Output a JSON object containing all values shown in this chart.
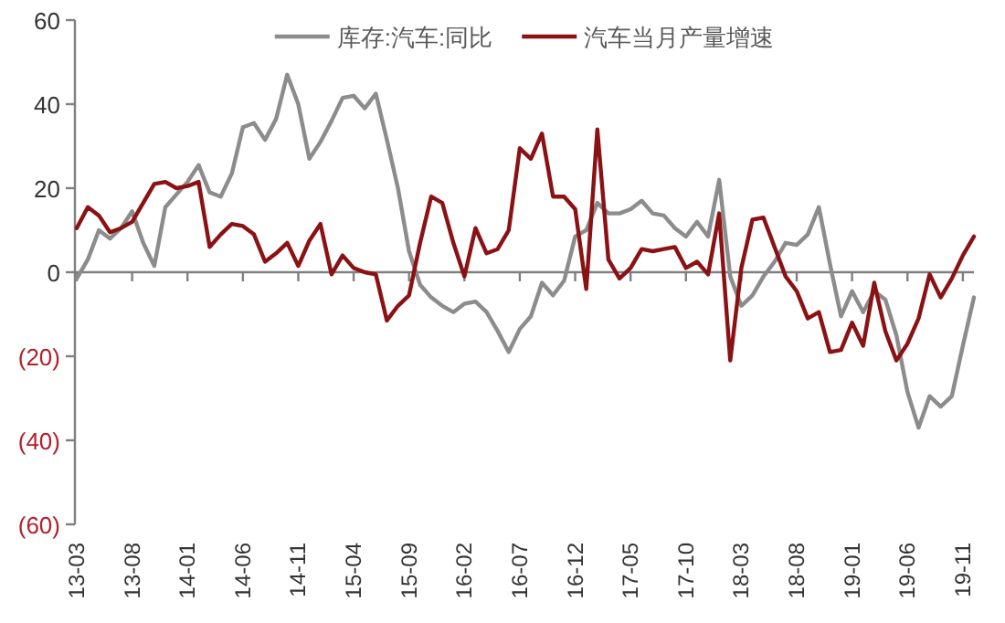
{
  "chart_data": {
    "type": "line",
    "legend": "top",
    "marker": "none",
    "line_style": "solid",
    "categories": [
      "13-03",
      null,
      null,
      null,
      null,
      "13-08",
      null,
      null,
      null,
      null,
      "14-01",
      null,
      null,
      null,
      null,
      "14-06",
      null,
      null,
      null,
      null,
      "14-11",
      null,
      null,
      null,
      null,
      "15-04",
      null,
      null,
      null,
      null,
      "15-09",
      null,
      null,
      null,
      null,
      "16-02",
      null,
      null,
      null,
      null,
      "16-07",
      null,
      null,
      null,
      null,
      "16-12",
      null,
      null,
      null,
      null,
      "17-05",
      null,
      null,
      null,
      null,
      "17-10",
      null,
      null,
      null,
      null,
      "18-03",
      null,
      null,
      null,
      null,
      "18-08",
      null,
      null,
      null,
      null,
      "19-01",
      null,
      null,
      null,
      null,
      "19-06",
      null,
      null,
      null,
      null,
      "19-11",
      null
    ],
    "ylim": [
      -60,
      60
    ],
    "yticks": [
      60,
      40,
      20,
      0,
      {
        "value": -20,
        "label": "(20)"
      },
      {
        "value": -40,
        "label": "(40)"
      },
      {
        "value": -60,
        "label": "(60)"
      }
    ],
    "series": [
      {
        "name": "库存:汽车:同比",
        "color": "#8c8c8c",
        "values": [
          -1.5,
          3,
          10,
          8,
          10.5,
          14.5,
          7,
          1.5,
          15.5,
          18.5,
          21.5,
          25.5,
          19,
          18,
          23.5,
          34.5,
          35.5,
          31.5,
          36.5,
          47,
          40,
          27,
          31,
          36,
          41.5,
          42,
          39,
          42.5,
          31.5,
          20,
          5,
          -3,
          -6,
          -8,
          -9.5,
          -7.5,
          -7,
          -9.5,
          -14,
          -19,
          -13.5,
          -10.5,
          -2.5,
          -5.5,
          -2,
          8.5,
          10,
          16.5,
          14,
          14,
          15,
          17,
          14,
          13.5,
          10.5,
          8.5,
          12,
          8.5,
          22,
          -1,
          -8,
          -5.5,
          -1,
          2.5,
          7,
          6.5,
          9,
          15.5,
          2,
          -10.5,
          -4.5,
          -9.5,
          -4.5,
          -6.5,
          -15,
          -28.5,
          -37,
          -29.5,
          -32,
          -29.5,
          -17.5,
          -6
        ]
      },
      {
        "name": "汽车当月产量增速",
        "color": "#8b1214",
        "values": [
          10.5,
          15.5,
          13.5,
          9.5,
          10.5,
          12,
          16.5,
          21,
          21.5,
          20,
          20.5,
          21.5,
          6,
          9,
          11.5,
          11,
          9,
          2.5,
          4.5,
          7,
          1.5,
          7.5,
          11.5,
          -0.5,
          4,
          1,
          0,
          -0.5,
          -11.5,
          -8,
          -5.5,
          7,
          18,
          16.5,
          7,
          -1,
          10.5,
          4.5,
          5.5,
          10,
          29.5,
          27,
          33,
          18,
          18,
          15,
          -4,
          34,
          3,
          -1.5,
          1,
          5.5,
          5,
          5.5,
          6,
          1,
          2.5,
          -0.5,
          14,
          -21,
          1,
          12.5,
          13,
          6,
          -1,
          -4.5,
          -11,
          -9.5,
          -19,
          -18.5,
          -12,
          -17.5,
          -2.5,
          -14,
          -21,
          -17,
          -11,
          -0.5,
          -6,
          -1.5,
          4,
          8.5
        ]
      }
    ]
  }
}
